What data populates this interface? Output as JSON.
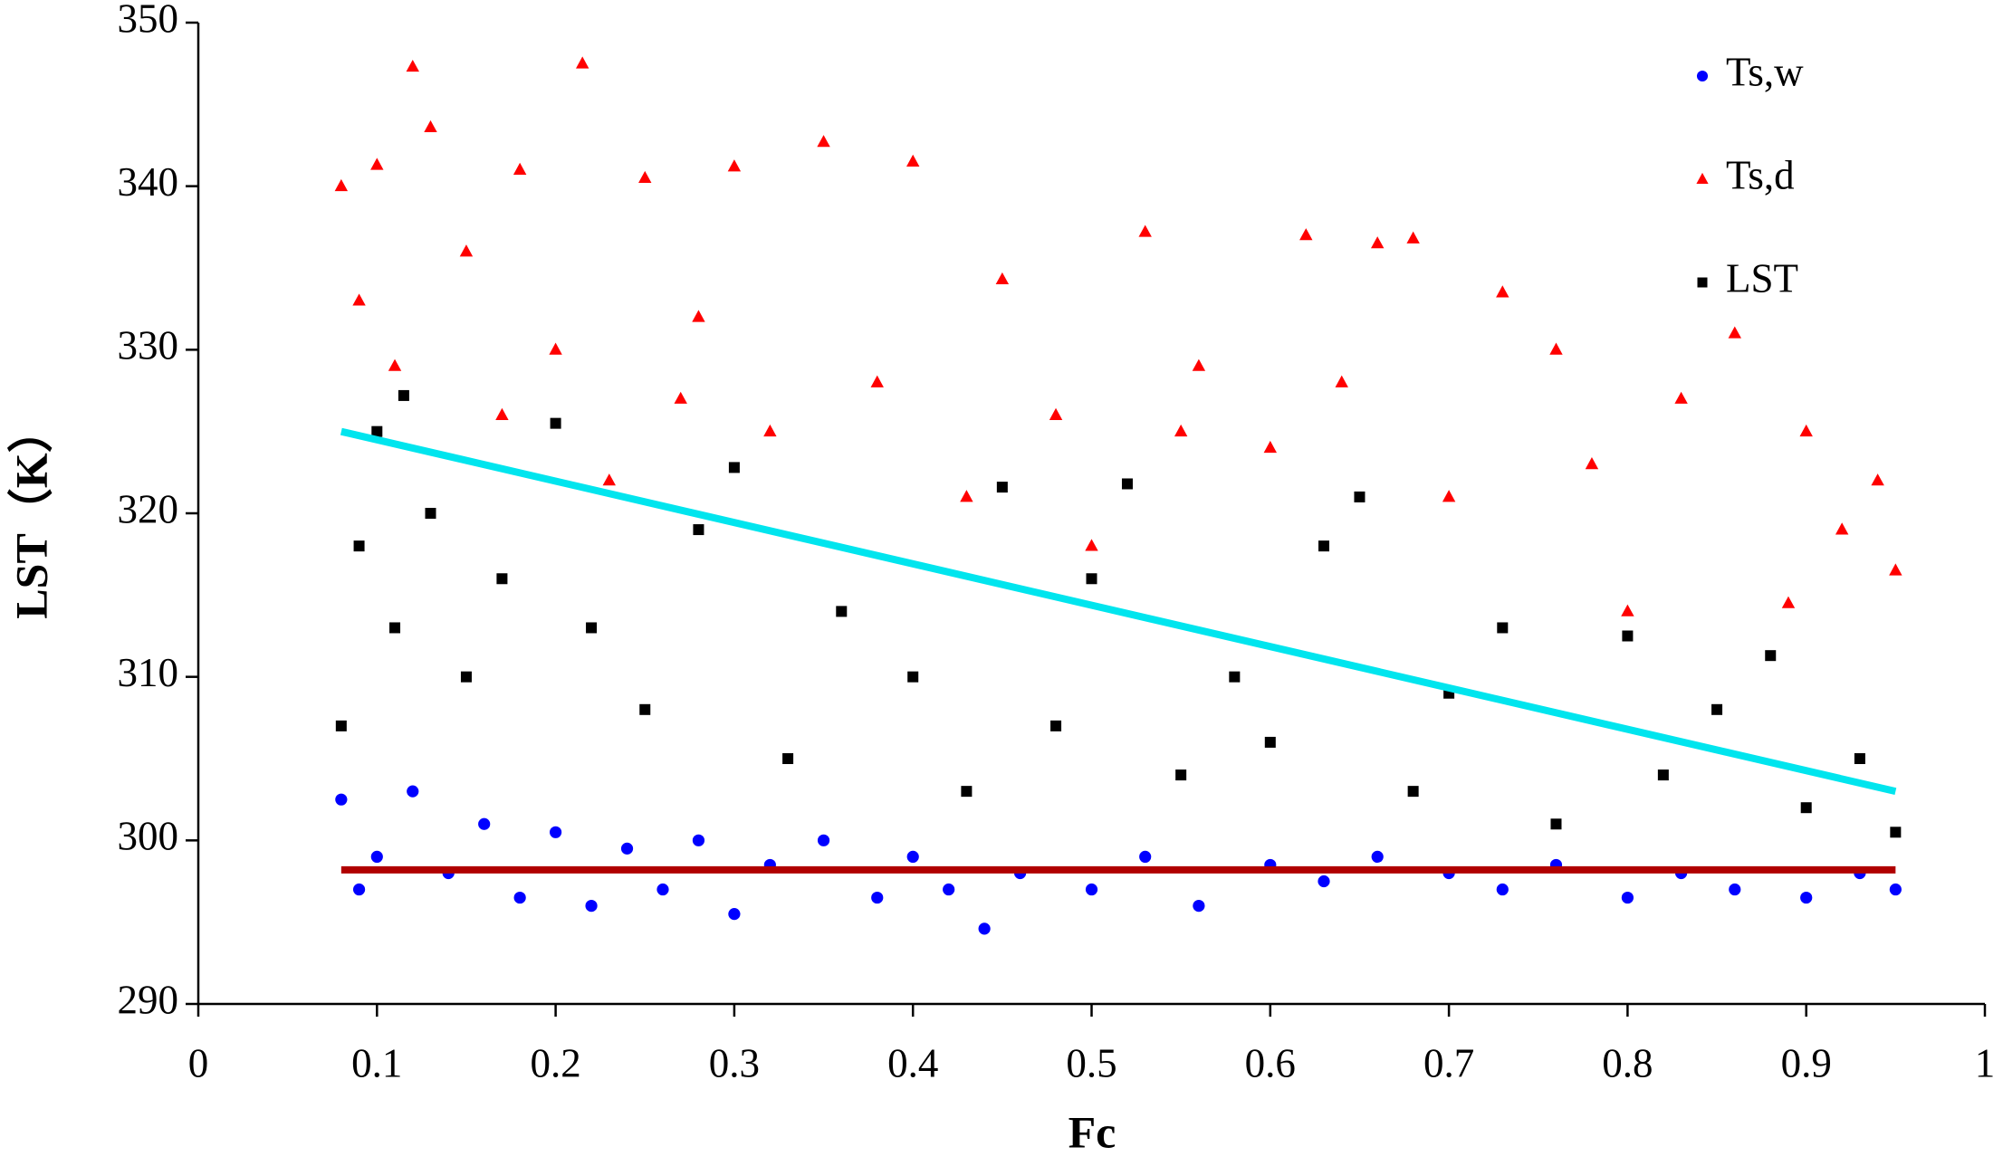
{
  "chart_data": {
    "type": "scatter",
    "xlabel": "Fc",
    "ylabel": "LST（K）",
    "xlim": [
      0,
      1
    ],
    "ylim": [
      290,
      350
    ],
    "xticks": [
      0,
      0.1,
      0.2,
      0.3,
      0.4,
      0.5,
      0.6,
      0.7,
      0.8,
      0.9,
      1
    ],
    "yticks": [
      290,
      300,
      310,
      320,
      330,
      340,
      350
    ],
    "grid": false,
    "legend": "upper right",
    "series": [
      {
        "name": "Ts,w",
        "color": "#0000ff",
        "marker": "circle",
        "x": [
          0.08,
          0.09,
          0.1,
          0.12,
          0.14,
          0.16,
          0.18,
          0.2,
          0.22,
          0.24,
          0.26,
          0.28,
          0.3,
          0.32,
          0.35,
          0.38,
          0.4,
          0.42,
          0.44,
          0.46,
          0.5,
          0.53,
          0.56,
          0.6,
          0.63,
          0.66,
          0.7,
          0.73,
          0.76,
          0.8,
          0.83,
          0.86,
          0.9,
          0.93,
          0.95
        ],
        "values": [
          302.5,
          297,
          299,
          303,
          298,
          301,
          296.5,
          300.5,
          296,
          299.5,
          297,
          300,
          295.5,
          298.5,
          300,
          296.5,
          299,
          297,
          294.6,
          298,
          297,
          299,
          296,
          298.5,
          297.5,
          299,
          298,
          297,
          298.5,
          296.5,
          298,
          297,
          296.5,
          298,
          297
        ]
      },
      {
        "name": "Ts,d",
        "color": "#ff0000",
        "marker": "triangle",
        "x": [
          0.08,
          0.09,
          0.1,
          0.11,
          0.12,
          0.13,
          0.15,
          0.17,
          0.18,
          0.2,
          0.215,
          0.23,
          0.25,
          0.27,
          0.28,
          0.3,
          0.32,
          0.35,
          0.38,
          0.4,
          0.43,
          0.45,
          0.48,
          0.5,
          0.53,
          0.55,
          0.56,
          0.6,
          0.62,
          0.64,
          0.66,
          0.68,
          0.7,
          0.73,
          0.76,
          0.78,
          0.8,
          0.83,
          0.86,
          0.89,
          0.9,
          0.92,
          0.94,
          0.95
        ],
        "values": [
          340,
          333,
          341.3,
          329,
          347.3,
          343.6,
          336,
          326,
          341,
          330,
          347.5,
          322,
          340.5,
          327,
          332,
          341.2,
          325,
          342.7,
          328,
          341.5,
          321,
          334.3,
          326,
          318,
          337.2,
          325,
          329,
          324,
          337,
          328,
          336.5,
          336.8,
          321,
          333.5,
          330,
          323,
          314,
          327,
          331,
          314.5,
          325,
          319,
          322,
          316.5
        ]
      },
      {
        "name": "LST",
        "color": "#000000",
        "marker": "square",
        "x": [
          0.08,
          0.09,
          0.1,
          0.11,
          0.115,
          0.13,
          0.15,
          0.17,
          0.2,
          0.22,
          0.25,
          0.28,
          0.3,
          0.33,
          0.36,
          0.4,
          0.43,
          0.45,
          0.48,
          0.5,
          0.52,
          0.55,
          0.58,
          0.6,
          0.63,
          0.65,
          0.68,
          0.7,
          0.73,
          0.76,
          0.8,
          0.82,
          0.85,
          0.88,
          0.9,
          0.93,
          0.95
        ],
        "values": [
          307,
          318,
          325,
          313,
          327.2,
          320,
          310,
          316,
          325.5,
          313,
          308,
          319,
          322.8,
          305,
          314,
          310,
          303,
          321.6,
          307,
          316,
          321.8,
          304,
          310,
          306,
          318,
          321,
          303,
          309,
          313,
          301,
          312.5,
          304,
          308,
          311.3,
          302,
          305,
          300.5
        ]
      }
    ],
    "lines": [
      {
        "color": "#00e5ee",
        "x": [
          0.08,
          0.95
        ],
        "values": [
          325,
          303
        ]
      },
      {
        "color": "#b00000",
        "x": [
          0.08,
          0.95
        ],
        "values": [
          298.2,
          298.2
        ]
      }
    ]
  }
}
